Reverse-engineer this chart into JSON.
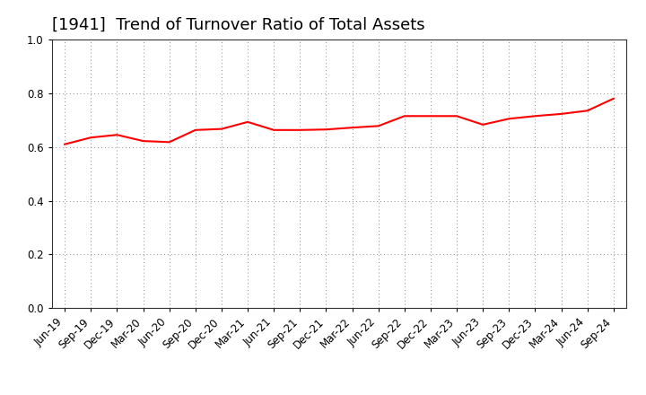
{
  "title": "[1941]  Trend of Turnover Ratio of Total Assets",
  "labels": [
    "Jun-19",
    "Sep-19",
    "Dec-19",
    "Mar-20",
    "Jun-20",
    "Sep-20",
    "Dec-20",
    "Mar-21",
    "Jun-21",
    "Sep-21",
    "Dec-21",
    "Mar-22",
    "Jun-22",
    "Sep-22",
    "Dec-22",
    "Mar-23",
    "Jun-23",
    "Sep-23",
    "Dec-23",
    "Mar-24",
    "Jun-24",
    "Sep-24"
  ],
  "values": [
    0.61,
    0.635,
    0.645,
    0.622,
    0.618,
    0.663,
    0.667,
    0.693,
    0.663,
    0.663,
    0.665,
    0.672,
    0.678,
    0.715,
    0.715,
    0.715,
    0.683,
    0.705,
    0.715,
    0.723,
    0.735,
    0.78
  ],
  "line_color": "#FF0000",
  "line_width": 1.5,
  "ylim": [
    0.0,
    1.0
  ],
  "yticks": [
    0.0,
    0.2,
    0.4,
    0.6,
    0.8,
    1.0
  ],
  "grid_color": "#888888",
  "bg_color": "#ffffff",
  "title_fontsize": 13,
  "tick_fontsize": 8.5
}
